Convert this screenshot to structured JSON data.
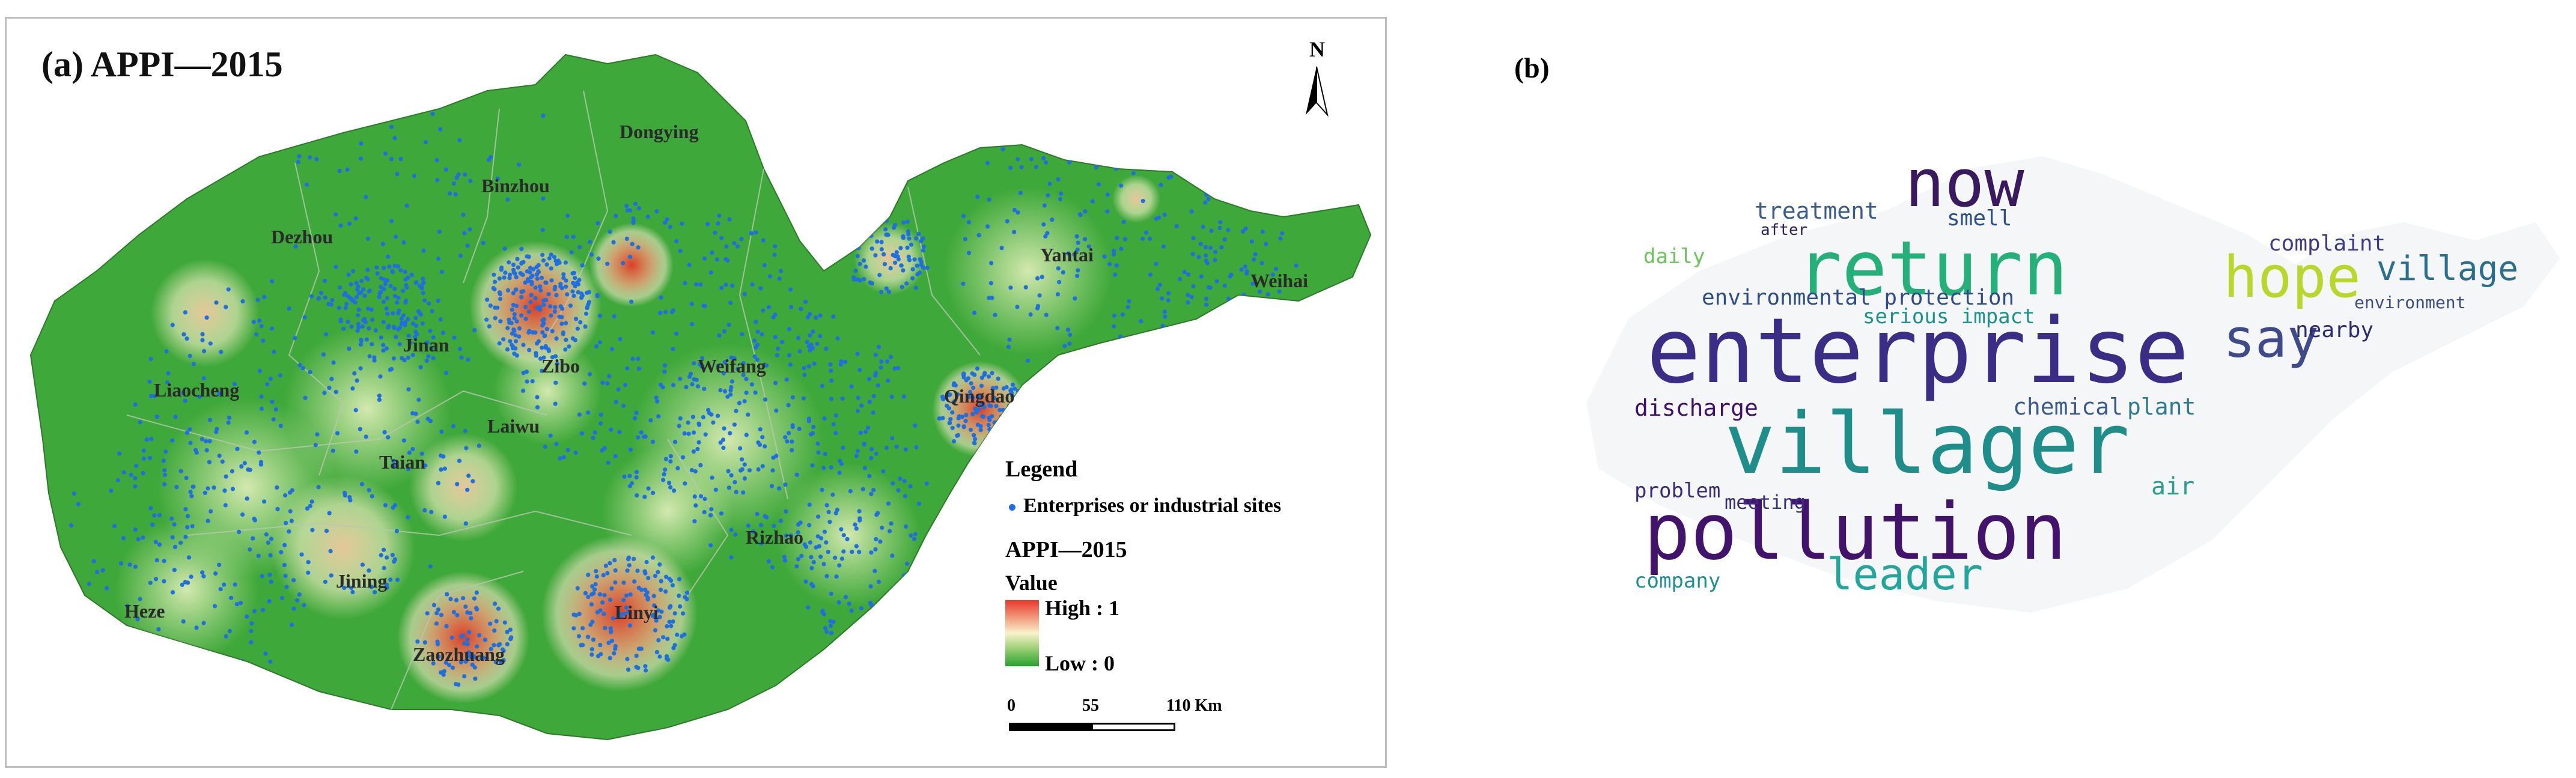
{
  "map_panel": {
    "title": "(a) APPI—2015",
    "north_label": "N",
    "cities": [
      {
        "name": "Binzhou"
      },
      {
        "name": "Dongying"
      },
      {
        "name": "Dezhou"
      },
      {
        "name": "Yantai"
      },
      {
        "name": "Weihai"
      },
      {
        "name": "Jinan"
      },
      {
        "name": "Zibo"
      },
      {
        "name": "Liaocheng"
      },
      {
        "name": "Weifang"
      },
      {
        "name": "Qingdao"
      },
      {
        "name": "Laiwu"
      },
      {
        "name": "Taian"
      },
      {
        "name": "Rizhao"
      },
      {
        "name": "Jining"
      },
      {
        "name": "Heze"
      },
      {
        "name": "Zaozhuang"
      },
      {
        "name": "Linyi"
      }
    ],
    "legend": {
      "title": "Legend",
      "point_item": "Enterprises or industrial sites",
      "surface_title": "APPI—2015",
      "value_label": "Value",
      "high_label": "High : 1",
      "low_label": "Low : 0"
    },
    "scale_bar": {
      "labels": [
        "0",
        "55",
        "110 Km"
      ]
    },
    "colors": {
      "high": "#e8392a",
      "mid": "#fbf2cc",
      "low": "#27a12e",
      "points": "#1f6fe0"
    }
  },
  "word_cloud_panel": {
    "label": "(b)",
    "words": [
      {
        "text": "enterprise",
        "color": "#3b2d86"
      },
      {
        "text": "villager",
        "color": "#1f8e8b"
      },
      {
        "text": "pollution",
        "color": "#42136b"
      },
      {
        "text": "return",
        "color": "#25b079"
      },
      {
        "text": "now",
        "color": "#3a1a5e"
      },
      {
        "text": "hope",
        "color": "#b9d62c"
      },
      {
        "text": "village",
        "color": "#2b6f8e"
      },
      {
        "text": "say",
        "color": "#3f4a8a"
      },
      {
        "text": "leader",
        "color": "#22a59a"
      },
      {
        "text": "environmental protection",
        "color": "#2c4d87"
      },
      {
        "text": "treatment",
        "color": "#3a5d8c"
      },
      {
        "text": "smell",
        "color": "#2b4f8a"
      },
      {
        "text": "complaint",
        "color": "#3f3a84"
      },
      {
        "text": "discharge",
        "color": "#40106b"
      },
      {
        "text": "chemical",
        "color": "#3a5a8c"
      },
      {
        "text": "plant",
        "color": "#2f7b8d"
      },
      {
        "text": "serious impact",
        "color": "#1f918c"
      },
      {
        "text": "nearby",
        "color": "#2f2a73"
      },
      {
        "text": "environment",
        "color": "#3a4d86"
      },
      {
        "text": "problem",
        "color": "#3d2a7d"
      },
      {
        "text": "company",
        "color": "#1d8f8d"
      },
      {
        "text": "meeting",
        "color": "#3b2e80"
      },
      {
        "text": "daily",
        "color": "#6bc55a"
      },
      {
        "text": "air",
        "color": "#2aa08a"
      },
      {
        "text": "after",
        "color": "#2f1f6a"
      }
    ]
  }
}
